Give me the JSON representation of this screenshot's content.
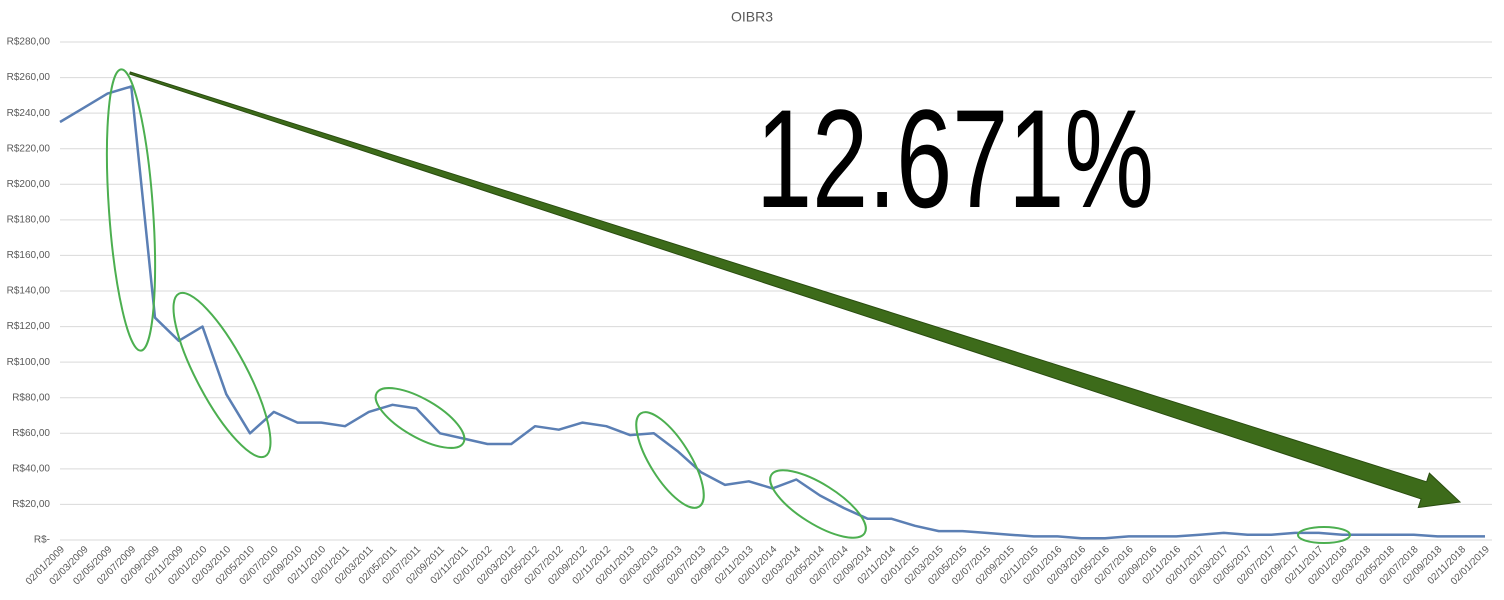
{
  "chart_data": {
    "type": "line",
    "title": "OIBR3",
    "annotation": "12.671%",
    "categories": [
      "02/01/2009",
      "02/03/2009",
      "02/05/2009",
      "02/07/2009",
      "02/09/2009",
      "02/11/2009",
      "02/01/2010",
      "02/03/2010",
      "02/05/2010",
      "02/07/2010",
      "02/09/2010",
      "02/11/2010",
      "02/01/2011",
      "02/03/2011",
      "02/05/2011",
      "02/07/2011",
      "02/09/2011",
      "02/11/2011",
      "02/01/2012",
      "02/03/2012",
      "02/05/2012",
      "02/07/2012",
      "02/09/2012",
      "02/11/2012",
      "02/01/2013",
      "02/03/2013",
      "02/05/2013",
      "02/07/2013",
      "02/09/2013",
      "02/11/2013",
      "02/01/2014",
      "02/03/2014",
      "02/05/2014",
      "02/07/2014",
      "02/09/2014",
      "02/11/2014",
      "02/01/2015",
      "02/03/2015",
      "02/05/2015",
      "02/07/2015",
      "02/09/2015",
      "02/11/2015",
      "02/01/2016",
      "02/03/2016",
      "02/05/2016",
      "02/07/2016",
      "02/09/2016",
      "02/11/2016",
      "02/01/2017",
      "02/03/2017",
      "02/05/2017",
      "02/07/2017",
      "02/09/2017",
      "02/11/2017",
      "02/01/2018",
      "02/03/2018",
      "02/05/2018",
      "02/07/2018",
      "02/09/2018",
      "02/11/2018",
      "02/01/2019"
    ],
    "values": [
      235,
      243,
      251,
      255,
      125,
      112,
      120,
      82,
      60,
      72,
      66,
      66,
      64,
      72,
      76,
      74,
      60,
      57,
      54,
      54,
      64,
      62,
      66,
      64,
      59,
      60,
      50,
      38,
      31,
      33,
      29,
      34,
      25,
      18,
      12,
      12,
      8,
      5,
      5,
      4,
      3,
      2,
      2,
      1,
      1,
      2,
      2,
      2,
      3,
      4,
      3,
      3,
      4,
      4,
      3,
      3,
      3,
      3,
      2,
      2,
      2
    ],
    "color": "#5b7fb4",
    "ylim": [
      0,
      280
    ],
    "yticks": [
      {
        "value": 0,
        "label": "R$-"
      },
      {
        "value": 20,
        "label": "R$20,00"
      },
      {
        "value": 40,
        "label": "R$40,00"
      },
      {
        "value": 60,
        "label": "R$60,00"
      },
      {
        "value": 80,
        "label": "R$80,00"
      },
      {
        "value": 100,
        "label": "R$100,00"
      },
      {
        "value": 120,
        "label": "R$120,00"
      },
      {
        "value": 140,
        "label": "R$140,00"
      },
      {
        "value": 160,
        "label": "R$160,00"
      },
      {
        "value": 180,
        "label": "R$180,00"
      },
      {
        "value": 200,
        "label": "R$200,00"
      },
      {
        "value": 220,
        "label": "R$220,00"
      },
      {
        "value": 240,
        "label": "R$240,00"
      },
      {
        "value": 260,
        "label": "R$260,00"
      },
      {
        "value": 280,
        "label": "R$280,00"
      }
    ],
    "grid": true
  }
}
